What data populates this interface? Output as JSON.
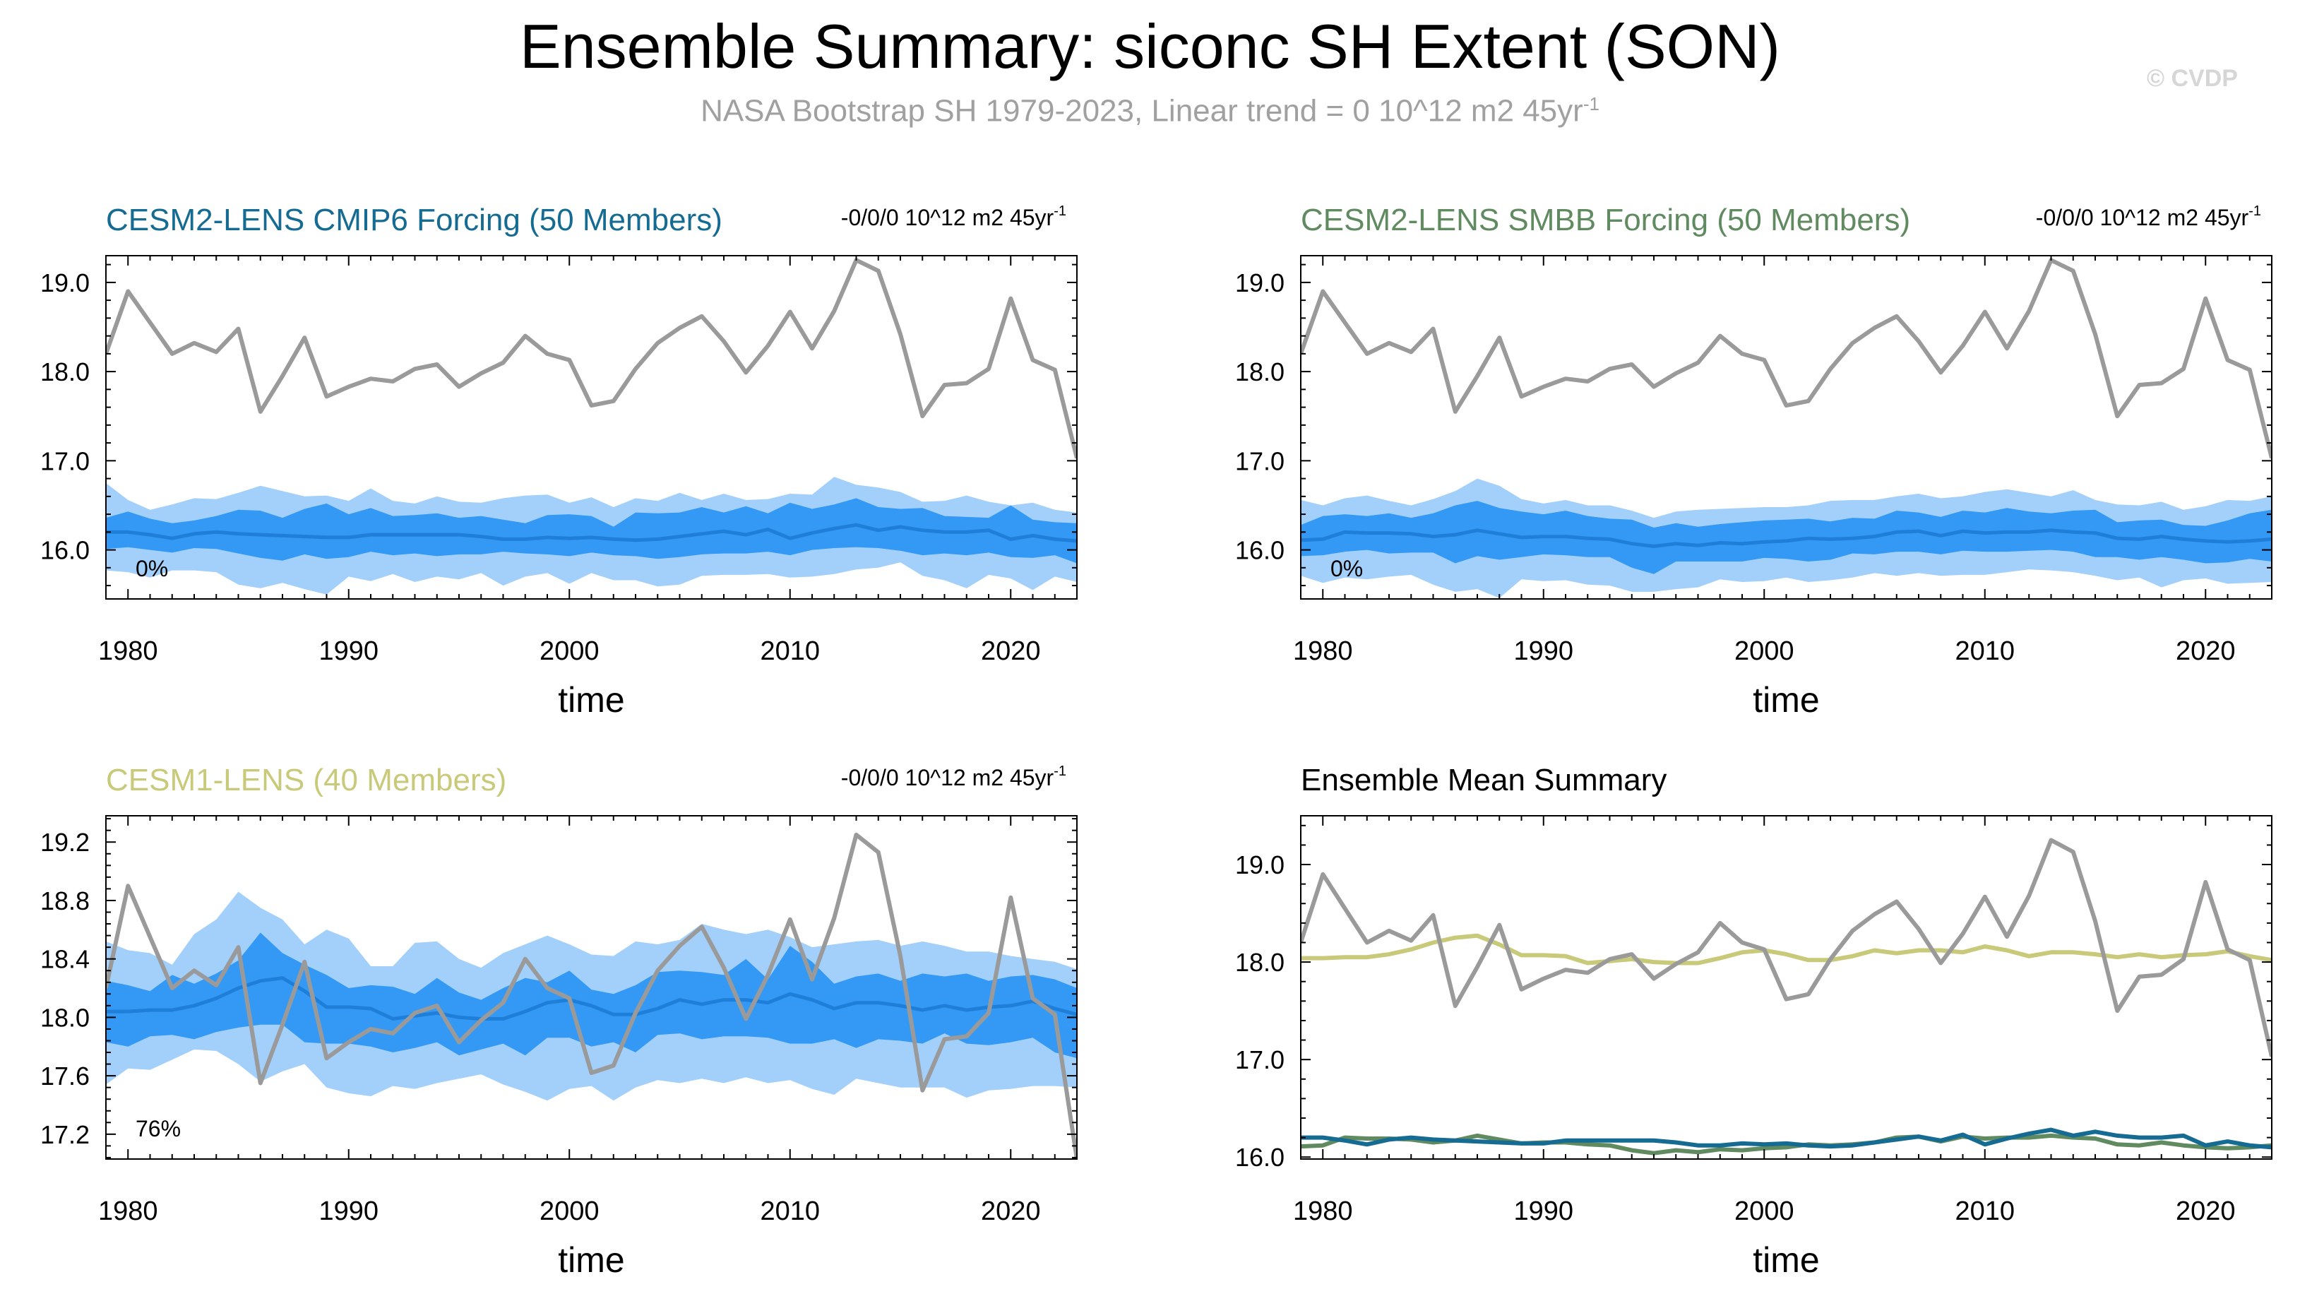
{
  "title": "Ensemble Summary: siconc SH Extent (SON)",
  "subtitle": "NASA Bootstrap SH 1979-2023, Linear trend = 0 10^12 m2 45yr",
  "subtitle_sup": "-1",
  "watermark": "© CVDP",
  "colors": {
    "obs": "#9a9a9a",
    "band_outer": "#a3d0fb",
    "band_inner": "#3399f5",
    "ens_mean": "#1f7fd8",
    "cmip6": "#156b91",
    "smbb": "#608a5f",
    "cesm1": "#c9c97a"
  },
  "chart_data": [
    {
      "type": "line",
      "title": "CESM2-LENS CMIP6 Forcing (50 Members)",
      "title_color": "#156b91",
      "trend_label": "-0/0/0 10^12 m2 45yr",
      "trend_sup": "-1",
      "rank_label": "0%",
      "xlabel": "time",
      "xlim": [
        1979,
        2023
      ],
      "ylim": [
        15.45,
        19.3
      ],
      "xticks": [
        1980,
        1990,
        2000,
        2010,
        2020
      ],
      "yticks": [
        16.0,
        17.0,
        18.0,
        19.0
      ],
      "ytick_labels": [
        "16.0",
        "17.0",
        "18.0",
        "19.0"
      ],
      "grid": false,
      "obs": [
        18.2,
        18.9,
        18.55,
        18.2,
        18.32,
        18.22,
        18.48,
        17.55,
        17.95,
        18.38,
        17.72,
        17.83,
        17.92,
        17.89,
        18.03,
        18.08,
        17.83,
        17.98,
        18.1,
        18.4,
        18.2,
        18.13,
        17.62,
        17.67,
        18.03,
        18.32,
        18.49,
        18.62,
        18.34,
        17.99,
        18.29,
        18.67,
        18.26,
        18.68,
        19.25,
        19.13,
        18.42,
        17.5,
        17.85,
        17.87,
        18.03,
        18.82,
        18.13,
        18.02,
        17.03
      ],
      "mean": [
        16.2,
        16.2,
        16.17,
        16.13,
        16.18,
        16.2,
        16.18,
        16.17,
        16.16,
        16.15,
        16.14,
        16.14,
        16.17,
        16.17,
        16.17,
        16.17,
        16.17,
        16.15,
        16.12,
        16.12,
        16.14,
        16.13,
        16.14,
        16.12,
        16.11,
        16.12,
        16.15,
        16.18,
        16.21,
        16.17,
        16.23,
        16.13,
        16.19,
        16.24,
        16.28,
        16.22,
        16.26,
        16.22,
        16.2,
        16.2,
        16.22,
        16.12,
        16.16,
        16.12,
        16.1
      ],
      "inner_hi": [
        16.36,
        16.43,
        16.35,
        16.3,
        16.33,
        16.38,
        16.45,
        16.44,
        16.36,
        16.46,
        16.52,
        16.4,
        16.47,
        16.38,
        16.39,
        16.41,
        16.36,
        16.38,
        16.34,
        16.3,
        16.39,
        16.4,
        16.38,
        16.26,
        16.42,
        16.41,
        16.42,
        16.48,
        16.42,
        16.49,
        16.41,
        16.53,
        16.46,
        16.51,
        16.58,
        16.48,
        16.46,
        16.47,
        16.38,
        16.37,
        16.36,
        16.5,
        16.34,
        16.31,
        16.3
      ],
      "inner_lo": [
        16.01,
        16.03,
        16.0,
        15.97,
        16.02,
        16.01,
        15.96,
        15.91,
        15.88,
        15.95,
        15.9,
        15.92,
        15.98,
        15.94,
        15.96,
        15.93,
        15.95,
        15.95,
        15.98,
        15.96,
        15.95,
        15.93,
        15.97,
        15.94,
        15.93,
        15.9,
        15.92,
        15.95,
        15.96,
        15.96,
        15.98,
        15.94,
        16.0,
        16.02,
        16.03,
        16.02,
        15.99,
        15.94,
        15.96,
        15.94,
        15.97,
        15.92,
        15.91,
        15.94,
        15.85
      ],
      "outer_hi": [
        16.75,
        16.56,
        16.45,
        16.51,
        16.58,
        16.57,
        16.64,
        16.72,
        16.66,
        16.6,
        16.61,
        16.55,
        16.69,
        16.55,
        16.52,
        16.6,
        16.54,
        16.53,
        16.58,
        16.61,
        16.62,
        16.53,
        16.59,
        16.48,
        16.58,
        16.55,
        16.64,
        16.56,
        16.63,
        16.56,
        16.57,
        16.63,
        16.62,
        16.82,
        16.73,
        16.7,
        16.65,
        16.54,
        16.55,
        16.61,
        16.54,
        16.5,
        16.53,
        16.45,
        16.42
      ],
      "outer_lo": [
        15.77,
        15.75,
        15.69,
        15.77,
        15.77,
        15.75,
        15.61,
        15.57,
        15.63,
        15.56,
        15.5,
        15.7,
        15.65,
        15.73,
        15.64,
        15.7,
        15.67,
        15.74,
        15.6,
        15.7,
        15.74,
        15.62,
        15.74,
        15.66,
        15.66,
        15.59,
        15.61,
        15.71,
        15.72,
        15.72,
        15.73,
        15.69,
        15.7,
        15.73,
        15.78,
        15.8,
        15.86,
        15.71,
        15.66,
        15.57,
        15.72,
        15.68,
        15.55,
        15.7,
        15.64
      ]
    },
    {
      "type": "line",
      "title": "CESM2-LENS SMBB Forcing (50 Members)",
      "title_color": "#608a5f",
      "trend_label": "-0/0/0 10^12 m2 45yr",
      "trend_sup": "-1",
      "rank_label": "0%",
      "xlabel": "time",
      "xlim": [
        1979,
        2023
      ],
      "ylim": [
        15.45,
        19.3
      ],
      "xticks": [
        1980,
        1990,
        2000,
        2010,
        2020
      ],
      "yticks": [
        16.0,
        17.0,
        18.0,
        19.0
      ],
      "ytick_labels": [
        "16.0",
        "17.0",
        "18.0",
        "19.0"
      ],
      "grid": false,
      "obs": [
        18.2,
        18.9,
        18.55,
        18.2,
        18.32,
        18.22,
        18.48,
        17.55,
        17.95,
        18.38,
        17.72,
        17.83,
        17.92,
        17.89,
        18.03,
        18.08,
        17.83,
        17.98,
        18.1,
        18.4,
        18.2,
        18.13,
        17.62,
        17.67,
        18.03,
        18.32,
        18.49,
        18.62,
        18.34,
        17.99,
        18.29,
        18.67,
        18.26,
        18.68,
        19.25,
        19.13,
        18.42,
        17.5,
        17.85,
        17.87,
        18.03,
        18.82,
        18.13,
        18.02,
        17.03
      ],
      "mean": [
        16.11,
        16.12,
        16.2,
        16.19,
        16.19,
        16.18,
        16.15,
        16.17,
        16.22,
        16.18,
        16.14,
        16.15,
        16.15,
        16.13,
        16.12,
        16.07,
        16.04,
        16.07,
        16.05,
        16.08,
        16.07,
        16.09,
        16.1,
        16.13,
        16.12,
        16.13,
        16.15,
        16.2,
        16.21,
        16.16,
        16.21,
        16.19,
        16.2,
        16.2,
        16.22,
        16.2,
        16.19,
        16.13,
        16.12,
        16.15,
        16.12,
        16.1,
        16.09,
        16.1,
        16.12
      ],
      "inner_hi": [
        16.28,
        16.38,
        16.4,
        16.38,
        16.41,
        16.36,
        16.41,
        16.5,
        16.55,
        16.47,
        16.43,
        16.4,
        16.44,
        16.38,
        16.35,
        16.34,
        16.25,
        16.3,
        16.26,
        16.29,
        16.31,
        16.33,
        16.34,
        16.35,
        16.32,
        16.36,
        16.35,
        16.44,
        16.42,
        16.37,
        16.44,
        16.42,
        16.47,
        16.43,
        16.41,
        16.44,
        16.45,
        16.31,
        16.33,
        16.34,
        16.28,
        16.27,
        16.33,
        16.41,
        16.45
      ],
      "inner_lo": [
        15.93,
        15.94,
        15.98,
        16.0,
        15.96,
        15.97,
        15.97,
        15.85,
        15.93,
        15.89,
        15.92,
        15.95,
        15.94,
        15.92,
        15.92,
        15.8,
        15.73,
        15.87,
        15.87,
        15.87,
        15.87,
        15.91,
        15.9,
        15.87,
        15.89,
        15.96,
        15.95,
        15.98,
        15.98,
        15.95,
        15.99,
        15.98,
        15.98,
        15.99,
        16.0,
        15.98,
        15.92,
        15.92,
        15.89,
        15.92,
        15.89,
        15.85,
        15.86,
        15.9,
        15.87
      ],
      "outer_hi": [
        16.56,
        16.5,
        16.58,
        16.61,
        16.55,
        16.5,
        16.57,
        16.66,
        16.8,
        16.72,
        16.57,
        16.52,
        16.56,
        16.5,
        16.5,
        16.44,
        16.36,
        16.43,
        16.45,
        16.46,
        16.47,
        16.48,
        16.48,
        16.5,
        16.55,
        16.56,
        16.56,
        16.6,
        16.63,
        16.58,
        16.6,
        16.65,
        16.68,
        16.64,
        16.6,
        16.67,
        16.56,
        16.51,
        16.5,
        16.54,
        16.45,
        16.49,
        16.56,
        16.55,
        16.6
      ],
      "outer_lo": [
        15.71,
        15.63,
        15.69,
        15.67,
        15.7,
        15.72,
        15.61,
        15.53,
        15.56,
        15.46,
        15.67,
        15.65,
        15.66,
        15.61,
        15.6,
        15.53,
        15.53,
        15.56,
        15.58,
        15.67,
        15.64,
        15.65,
        15.69,
        15.64,
        15.66,
        15.69,
        15.74,
        15.71,
        15.74,
        15.71,
        15.72,
        15.72,
        15.75,
        15.78,
        15.77,
        15.75,
        15.71,
        15.66,
        15.69,
        15.58,
        15.66,
        15.68,
        15.62,
        15.63,
        15.64
      ]
    },
    {
      "type": "line",
      "title": "CESM1-LENS (40 Members)",
      "title_color": "#c9c97a",
      "trend_label": "-0/0/0 10^12 m2 45yr",
      "trend_sup": "-1",
      "rank_label": "76%",
      "xlabel": "time",
      "xlim": [
        1979,
        2023
      ],
      "ylim": [
        17.03,
        19.38
      ],
      "xticks": [
        1980,
        1990,
        2000,
        2010,
        2020
      ],
      "yticks": [
        17.2,
        17.6,
        18.0,
        18.4,
        18.8,
        19.2
      ],
      "ytick_labels": [
        "17.2",
        "17.6",
        "18.0",
        "18.4",
        "18.8",
        "19.2"
      ],
      "grid": false,
      "obs": [
        18.2,
        18.9,
        18.55,
        18.2,
        18.32,
        18.22,
        18.48,
        17.55,
        17.95,
        18.38,
        17.72,
        17.83,
        17.92,
        17.89,
        18.03,
        18.08,
        17.83,
        17.98,
        18.1,
        18.4,
        18.2,
        18.13,
        17.62,
        17.67,
        18.03,
        18.32,
        18.49,
        18.62,
        18.34,
        17.99,
        18.29,
        18.67,
        18.26,
        18.68,
        19.25,
        19.13,
        18.42,
        17.5,
        17.85,
        17.87,
        18.03,
        18.82,
        18.13,
        18.02,
        17.03
      ],
      "mean": [
        18.04,
        18.04,
        18.05,
        18.05,
        18.08,
        18.13,
        18.2,
        18.25,
        18.27,
        18.18,
        18.07,
        18.07,
        18.06,
        17.99,
        18.01,
        18.03,
        18.0,
        17.99,
        17.99,
        18.04,
        18.1,
        18.12,
        18.08,
        18.02,
        18.02,
        18.06,
        18.12,
        18.09,
        18.12,
        18.12,
        18.1,
        18.16,
        18.12,
        18.06,
        18.1,
        18.1,
        18.08,
        18.05,
        18.08,
        18.05,
        18.07,
        18.08,
        18.11,
        18.06,
        18.02
      ],
      "inner_hi": [
        18.25,
        18.22,
        18.18,
        18.29,
        18.23,
        18.3,
        18.39,
        18.58,
        18.44,
        18.36,
        18.29,
        18.2,
        18.22,
        18.21,
        18.16,
        18.27,
        18.17,
        18.12,
        18.2,
        18.27,
        18.24,
        18.32,
        18.19,
        18.16,
        18.22,
        18.31,
        18.32,
        18.31,
        18.29,
        18.4,
        18.26,
        18.49,
        18.38,
        18.23,
        18.28,
        18.3,
        18.25,
        18.3,
        18.28,
        18.3,
        18.25,
        18.28,
        18.29,
        18.26,
        18.2
      ],
      "inner_lo": [
        17.83,
        17.8,
        17.87,
        17.88,
        17.85,
        17.9,
        17.93,
        17.95,
        17.95,
        17.83,
        17.82,
        17.82,
        17.8,
        17.76,
        17.79,
        17.83,
        17.74,
        17.78,
        17.82,
        17.74,
        17.86,
        17.86,
        17.8,
        17.83,
        17.76,
        17.88,
        17.89,
        17.85,
        17.87,
        17.87,
        17.86,
        17.82,
        17.82,
        17.85,
        17.79,
        17.85,
        17.84,
        17.82,
        17.89,
        17.82,
        17.81,
        17.83,
        17.86,
        17.76,
        17.72
      ],
      "outer_hi": [
        18.52,
        18.46,
        18.44,
        18.36,
        18.57,
        18.67,
        18.86,
        18.75,
        18.67,
        18.5,
        18.6,
        18.54,
        18.35,
        18.35,
        18.51,
        18.52,
        18.4,
        18.34,
        18.44,
        18.5,
        18.56,
        18.5,
        18.43,
        18.42,
        18.52,
        18.5,
        18.53,
        18.64,
        18.6,
        18.57,
        18.6,
        18.55,
        18.48,
        18.5,
        18.52,
        18.53,
        18.49,
        18.52,
        18.49,
        18.45,
        18.45,
        18.42,
        18.4,
        18.38,
        18.33
      ],
      "outer_lo": [
        17.54,
        17.65,
        17.64,
        17.71,
        17.78,
        17.77,
        17.68,
        17.56,
        17.63,
        17.68,
        17.52,
        17.48,
        17.46,
        17.53,
        17.51,
        17.55,
        17.58,
        17.61,
        17.54,
        17.49,
        17.43,
        17.51,
        17.53,
        17.43,
        17.52,
        17.57,
        17.55,
        17.58,
        17.55,
        17.59,
        17.55,
        17.57,
        17.51,
        17.47,
        17.58,
        17.55,
        17.52,
        17.52,
        17.52,
        17.45,
        17.5,
        17.51,
        17.53,
        17.53,
        17.52
      ]
    },
    {
      "type": "line",
      "title": "Ensemble Mean Summary",
      "title_color": "#000000",
      "xlabel": "time",
      "xlim": [
        1979,
        2023
      ],
      "ylim": [
        15.98,
        19.5
      ],
      "xticks": [
        1980,
        1990,
        2000,
        2010,
        2020
      ],
      "yticks": [
        16.0,
        17.0,
        18.0,
        19.0
      ],
      "ytick_labels": [
        "16.0",
        "17.0",
        "18.0",
        "19.0"
      ],
      "grid": false,
      "series": [
        {
          "color": "#c9c97a",
          "values": [
            18.04,
            18.04,
            18.05,
            18.05,
            18.08,
            18.13,
            18.2,
            18.25,
            18.27,
            18.18,
            18.07,
            18.07,
            18.06,
            17.99,
            18.01,
            18.03,
            18.0,
            17.99,
            17.99,
            18.04,
            18.1,
            18.12,
            18.08,
            18.02,
            18.02,
            18.06,
            18.12,
            18.09,
            18.12,
            18.12,
            18.1,
            18.16,
            18.12,
            18.06,
            18.1,
            18.1,
            18.08,
            18.05,
            18.08,
            18.05,
            18.07,
            18.08,
            18.11,
            18.06,
            18.02
          ]
        },
        {
          "color": "#608a5f",
          "values": [
            16.11,
            16.12,
            16.2,
            16.19,
            16.19,
            16.18,
            16.15,
            16.17,
            16.22,
            16.18,
            16.14,
            16.15,
            16.15,
            16.13,
            16.12,
            16.07,
            16.04,
            16.07,
            16.05,
            16.08,
            16.07,
            16.09,
            16.1,
            16.13,
            16.12,
            16.13,
            16.15,
            16.2,
            16.21,
            16.16,
            16.21,
            16.19,
            16.2,
            16.2,
            16.22,
            16.2,
            16.19,
            16.13,
            16.12,
            16.15,
            16.12,
            16.1,
            16.09,
            16.1,
            16.12
          ]
        },
        {
          "color": "#156b91",
          "values": [
            16.2,
            16.2,
            16.17,
            16.13,
            16.18,
            16.2,
            16.18,
            16.17,
            16.16,
            16.15,
            16.14,
            16.14,
            16.17,
            16.17,
            16.17,
            16.17,
            16.17,
            16.15,
            16.12,
            16.12,
            16.14,
            16.13,
            16.14,
            16.12,
            16.11,
            16.12,
            16.15,
            16.18,
            16.21,
            16.17,
            16.23,
            16.13,
            16.19,
            16.24,
            16.28,
            16.22,
            16.26,
            16.22,
            16.2,
            16.2,
            16.22,
            16.12,
            16.16,
            16.12,
            16.1
          ]
        },
        {
          "color": "#9a9a9a",
          "values": [
            18.2,
            18.9,
            18.55,
            18.2,
            18.32,
            18.22,
            18.48,
            17.55,
            17.95,
            18.38,
            17.72,
            17.83,
            17.92,
            17.89,
            18.03,
            18.08,
            17.83,
            17.98,
            18.1,
            18.4,
            18.2,
            18.13,
            17.62,
            17.67,
            18.03,
            18.32,
            18.49,
            18.62,
            18.34,
            17.99,
            18.29,
            18.67,
            18.26,
            18.68,
            19.25,
            19.13,
            18.42,
            17.5,
            17.85,
            17.87,
            18.03,
            18.82,
            18.13,
            18.02,
            17.03
          ]
        }
      ]
    }
  ]
}
